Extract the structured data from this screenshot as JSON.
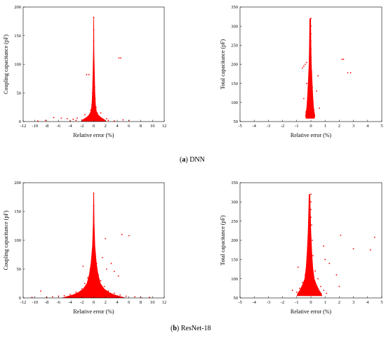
{
  "captions": [
    {
      "letter": "a",
      "text": "DNN"
    },
    {
      "letter": "b",
      "text": "ResNet-18"
    }
  ],
  "colors": {
    "points": "#ff0000",
    "axis": "#000000",
    "background": "#ffffff"
  },
  "chart_data": [
    {
      "type": "scatter",
      "panel": "a-left",
      "xlabel": "Relative error (%)",
      "ylabel": "Coupling capacitance (pF)",
      "xlim": [
        -12,
        12
      ],
      "ylim": [
        0,
        200
      ],
      "xticks": [
        -12,
        -10,
        -8,
        -6,
        -4,
        -2,
        0,
        2,
        4,
        6,
        8,
        10,
        12
      ],
      "yticks": [
        0,
        50,
        100,
        150,
        200
      ],
      "grid": false,
      "points": [
        [
          0,
          182
        ],
        [
          0,
          160
        ],
        [
          0,
          140
        ],
        [
          0,
          120
        ],
        [
          0,
          100
        ],
        [
          0.05,
          90
        ],
        [
          -0.05,
          85
        ],
        [
          0.1,
          75
        ],
        [
          -0.1,
          70
        ],
        [
          0.15,
          60
        ],
        [
          -0.2,
          50
        ],
        [
          0.25,
          40
        ],
        [
          -0.3,
          30
        ],
        [
          0.4,
          25
        ],
        [
          -0.5,
          20
        ],
        [
          0.6,
          15
        ],
        [
          -0.8,
          10
        ],
        [
          1.0,
          8
        ],
        [
          -1.2,
          6
        ],
        [
          1.5,
          4
        ],
        [
          -2.0,
          3
        ],
        [
          2.5,
          2
        ],
        [
          -3.0,
          2
        ],
        [
          3.5,
          1
        ],
        [
          -4.0,
          1
        ],
        [
          -1.2,
          82
        ],
        [
          -0.8,
          82
        ],
        [
          4.3,
          111
        ],
        [
          4.6,
          111
        ],
        [
          -5.5,
          6
        ],
        [
          -6.8,
          7
        ],
        [
          -4.5,
          5
        ],
        [
          -8.2,
          2
        ],
        [
          -9.5,
          1
        ],
        [
          5.0,
          3
        ],
        [
          6.0,
          2
        ],
        [
          -3.5,
          4
        ],
        [
          -2.8,
          6
        ],
        [
          2.2,
          5
        ],
        [
          -1.5,
          12
        ],
        [
          1.2,
          15
        ]
      ]
    },
    {
      "type": "scatter",
      "panel": "a-right",
      "xlabel": "Relative error (%)",
      "ylabel": "Total capacitance (pF)",
      "xlim": [
        -5,
        5
      ],
      "ylim": [
        50,
        350
      ],
      "xticks": [
        -5,
        -4,
        -3,
        -2,
        -1,
        0,
        1,
        2,
        3,
        4,
        5
      ],
      "yticks": [
        50,
        100,
        150,
        200,
        250,
        300,
        350
      ],
      "grid": false,
      "points": [
        [
          0,
          320
        ],
        [
          0,
          300
        ],
        [
          0,
          280
        ],
        [
          0,
          260
        ],
        [
          0,
          240
        ],
        [
          0,
          220
        ],
        [
          0,
          200
        ],
        [
          0.05,
          180
        ],
        [
          -0.05,
          160
        ],
        [
          0.1,
          140
        ],
        [
          -0.1,
          120
        ],
        [
          0.15,
          100
        ],
        [
          -0.15,
          90
        ],
        [
          0.2,
          80
        ],
        [
          -0.2,
          70
        ],
        [
          0.25,
          65
        ],
        [
          -0.25,
          60
        ],
        [
          -0.3,
          205
        ],
        [
          -0.4,
          200
        ],
        [
          -0.5,
          195
        ],
        [
          -0.6,
          190
        ],
        [
          2.2,
          213
        ],
        [
          2.3,
          213
        ],
        [
          2.6,
          178
        ],
        [
          2.8,
          178
        ],
        [
          0.5,
          170
        ],
        [
          -0.3,
          150
        ],
        [
          0.4,
          130
        ],
        [
          -0.5,
          110
        ],
        [
          0.6,
          85
        ],
        [
          -0.35,
          75
        ]
      ]
    },
    {
      "type": "scatter",
      "panel": "b-left",
      "xlabel": "Relative error (%)",
      "ylabel": "Coupling capacitance (pF)",
      "xlim": [
        -12,
        12
      ],
      "ylim": [
        0,
        200
      ],
      "xticks": [
        -12,
        -10,
        -8,
        -6,
        -4,
        -2,
        0,
        2,
        4,
        6,
        8,
        10,
        12
      ],
      "yticks": [
        0,
        50,
        100,
        150,
        200
      ],
      "grid": false,
      "points": [
        [
          0,
          182
        ],
        [
          0,
          160
        ],
        [
          0,
          140
        ],
        [
          0,
          120
        ],
        [
          0.05,
          100
        ],
        [
          -0.05,
          90
        ],
        [
          0.2,
          80
        ],
        [
          -0.3,
          70
        ],
        [
          0.5,
          60
        ],
        [
          -0.6,
          50
        ],
        [
          0.8,
          40
        ],
        [
          -1.0,
          35
        ],
        [
          1.2,
          30
        ],
        [
          -1.5,
          25
        ],
        [
          1.8,
          20
        ],
        [
          -2.0,
          16
        ],
        [
          2.5,
          12
        ],
        [
          -3.0,
          10
        ],
        [
          3.5,
          8
        ],
        [
          -4.0,
          6
        ],
        [
          4.5,
          5
        ],
        [
          -5.0,
          4
        ],
        [
          5.5,
          3
        ],
        [
          -6.0,
          3
        ],
        [
          7.0,
          2
        ],
        [
          -7.0,
          2
        ],
        [
          8.0,
          1
        ],
        [
          -8.0,
          1
        ],
        [
          2.0,
          103
        ],
        [
          4.8,
          110
        ],
        [
          6.0,
          108
        ],
        [
          3.0,
          60
        ],
        [
          3.5,
          46
        ],
        [
          4.2,
          38
        ],
        [
          -9.0,
          12
        ],
        [
          -10.5,
          1
        ],
        [
          9.5,
          1
        ],
        [
          -1.8,
          55
        ],
        [
          2.2,
          50
        ],
        [
          1.5,
          70
        ]
      ]
    },
    {
      "type": "scatter",
      "panel": "b-right",
      "xlabel": "Relative error (%)",
      "ylabel": "Total capacitance (pF)",
      "xlim": [
        -5,
        5
      ],
      "ylim": [
        50,
        350
      ],
      "xticks": [
        -5,
        -4,
        -3,
        -2,
        -1,
        0,
        1,
        2,
        3,
        4,
        5
      ],
      "yticks": [
        50,
        100,
        150,
        200,
        250,
        300,
        350
      ],
      "grid": false,
      "points": [
        [
          0,
          320
        ],
        [
          0,
          300
        ],
        [
          0,
          280
        ],
        [
          0,
          260
        ],
        [
          0.05,
          240
        ],
        [
          -0.05,
          220
        ],
        [
          0.1,
          200
        ],
        [
          -0.1,
          180
        ],
        [
          0.15,
          160
        ],
        [
          -0.2,
          140
        ],
        [
          0.3,
          120
        ],
        [
          -0.4,
          110
        ],
        [
          0.5,
          100
        ],
        [
          -0.6,
          90
        ],
        [
          0.7,
          80
        ],
        [
          -0.8,
          75
        ],
        [
          0.9,
          70
        ],
        [
          -1.0,
          65
        ],
        [
          1.1,
          62
        ],
        [
          2.1,
          213
        ],
        [
          4.5,
          208
        ],
        [
          3.0,
          178
        ],
        [
          4.2,
          175
        ],
        [
          1.3,
          140
        ],
        [
          1.8,
          110
        ],
        [
          2.0,
          80
        ],
        [
          0.9,
          185
        ],
        [
          -0.9,
          130
        ],
        [
          -1.3,
          70
        ],
        [
          1.0,
          150
        ]
      ]
    }
  ]
}
